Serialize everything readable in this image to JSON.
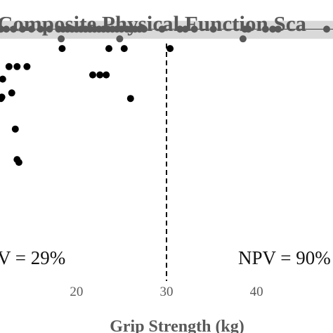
{
  "chart_data": {
    "type": "scatter",
    "title": "Composite Physical Function Sca",
    "xlabel": "Grip Strength (kg)",
    "ylabel": "",
    "x_ticks": [
      "20",
      "30",
      "40"
    ],
    "xlim": [
      11.5,
      48.5
    ],
    "ylim": [
      0,
      24
    ],
    "threshold_x": 30,
    "band": {
      "y_low": 21.2,
      "y_high": 22.5
    },
    "reference_line_y": 21.9,
    "annotations": [
      {
        "id": "ppv",
        "text": "V = 29%"
      },
      {
        "id": "npv",
        "text": "NPV = 90%"
      }
    ],
    "colors": {
      "title": "#595959",
      "axis_text": "#595959",
      "band": "#d9d9d9",
      "points_high": "#595959",
      "points_low": "#000000",
      "threshold_line": "#000000"
    },
    "series": [
      {
        "points": [
          [
            11.6,
            21.9
          ],
          [
            12.2,
            21.9
          ],
          [
            13.0,
            21.9
          ],
          [
            14.0,
            21.9
          ],
          [
            15.0,
            21.9
          ],
          [
            16.0,
            21.9
          ],
          [
            17.0,
            21.9
          ],
          [
            18.0,
            21.9
          ],
          [
            18.5,
            21.9
          ],
          [
            19.0,
            21.9
          ],
          [
            19.5,
            21.9
          ],
          [
            20.0,
            21.9
          ],
          [
            20.5,
            21.9
          ],
          [
            21.0,
            21.9
          ],
          [
            21.5,
            21.9
          ],
          [
            22.0,
            21.9
          ],
          [
            22.5,
            21.9
          ],
          [
            23.0,
            21.9
          ],
          [
            23.5,
            21.9
          ],
          [
            24.0,
            21.9
          ],
          [
            24.5,
            21.9
          ],
          [
            25.0,
            21.9
          ],
          [
            25.6,
            21.9
          ],
          [
            26.0,
            21.9
          ],
          [
            26.5,
            21.9
          ],
          [
            27.0,
            21.9
          ],
          [
            27.5,
            21.9
          ],
          [
            29.5,
            21.9
          ],
          [
            31.5,
            21.9
          ],
          [
            32.1,
            21.9
          ],
          [
            33.1,
            21.9
          ],
          [
            35.2,
            21.9
          ],
          [
            38.7,
            21.9
          ],
          [
            39.1,
            21.9
          ],
          [
            41.0,
            21.9
          ],
          [
            41.8,
            21.9
          ],
          [
            42.4,
            21.9
          ],
          [
            47.8,
            21.9
          ],
          [
            18.3,
            21.2
          ],
          [
            24.8,
            21.2
          ],
          [
            38.5,
            21.2
          ]
        ]
      },
      {
        "points": [
          [
            18.4,
            20.5
          ],
          [
            23.6,
            20.5
          ],
          [
            25.3,
            20.5
          ],
          [
            30.4,
            20.5
          ],
          [
            12.5,
            19.2
          ],
          [
            13.4,
            19.2
          ],
          [
            14.5,
            19.2
          ],
          [
            21.8,
            18.6
          ],
          [
            22.6,
            18.6
          ],
          [
            23.3,
            18.6
          ],
          [
            11.8,
            18.3
          ],
          [
            12.8,
            17.3
          ],
          [
            11.7,
            17.0
          ],
          [
            11.6,
            16.9
          ],
          [
            26.0,
            16.9
          ],
          [
            13.2,
            14.7
          ],
          [
            13.4,
            12.5
          ],
          [
            13.6,
            12.3
          ]
        ]
      }
    ]
  }
}
